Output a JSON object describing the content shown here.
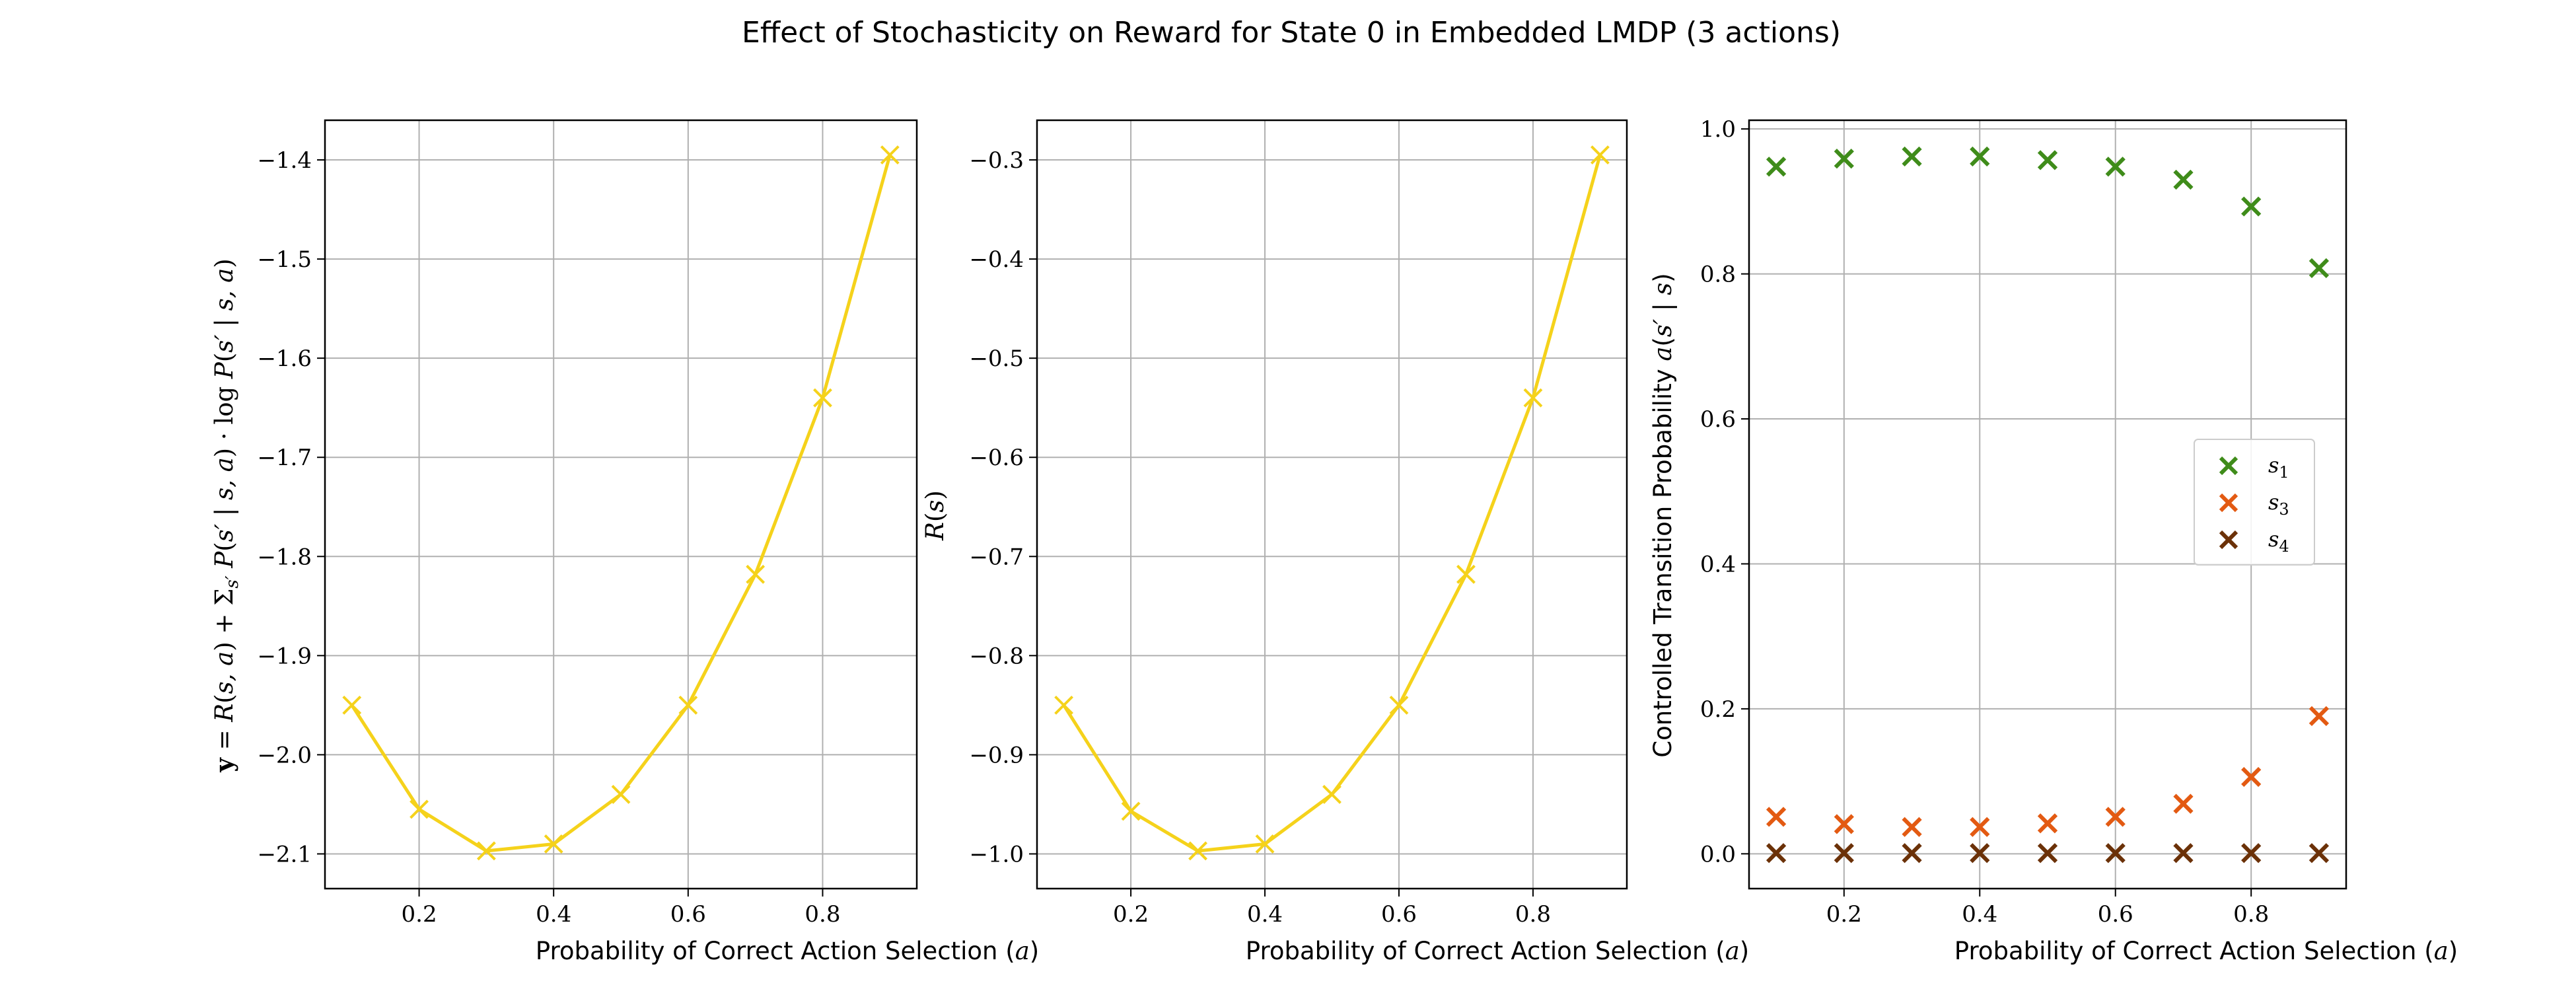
{
  "figure": {
    "suptitle": "Effect of Stochasticity on Reward for State 0 in Embedded LMDP (3 actions)"
  },
  "chart_data": [
    {
      "type": "line",
      "title": "",
      "xlabel": "Probability of Correct Action Selection (a)",
      "ylabel": "y = R(s,a) + Σs' P(s' | s,a) · log P(s' | s,a)",
      "xlim": [
        0.06,
        0.94
      ],
      "ylim": [
        -2.135,
        -1.36
      ],
      "xticks": [
        0.2,
        0.4,
        0.6,
        0.8
      ],
      "xtick_labels": [
        "0.2",
        "0.4",
        "0.6",
        "0.8"
      ],
      "yticks": [
        -2.1,
        -2.0,
        -1.9,
        -1.8,
        -1.7,
        -1.6,
        -1.5,
        -1.4
      ],
      "ytick_labels": [
        "−2.1",
        "−2.0",
        "−1.9",
        "−1.8",
        "−1.7",
        "−1.6",
        "−1.5",
        "−1.4"
      ],
      "grid": true,
      "x": [
        0.1,
        0.2,
        0.3,
        0.4,
        0.5,
        0.6,
        0.7,
        0.8,
        0.9
      ],
      "series": [
        {
          "values": [
            -1.95,
            -2.055,
            -2.097,
            -2.09,
            -2.04,
            -1.95,
            -1.818,
            -1.64,
            -1.395
          ],
          "color": "#f5d21b",
          "marker": "x"
        }
      ]
    },
    {
      "type": "line",
      "title": "",
      "xlabel": "Probability of Correct Action Selection (a)",
      "ylabel": "R(s)",
      "xlim": [
        0.06,
        0.94
      ],
      "ylim": [
        -1.035,
        -0.26
      ],
      "xticks": [
        0.2,
        0.4,
        0.6,
        0.8
      ],
      "xtick_labels": [
        "0.2",
        "0.4",
        "0.6",
        "0.8"
      ],
      "yticks": [
        -1.0,
        -0.9,
        -0.8,
        -0.7,
        -0.6,
        -0.5,
        -0.4,
        -0.3
      ],
      "ytick_labels": [
        "−1.0",
        "−0.9",
        "−0.8",
        "−0.7",
        "−0.6",
        "−0.5",
        "−0.4",
        "−0.3"
      ],
      "grid": true,
      "x": [
        0.1,
        0.2,
        0.3,
        0.4,
        0.5,
        0.6,
        0.7,
        0.8,
        0.9
      ],
      "series": [
        {
          "values": [
            -0.85,
            -0.957,
            -0.997,
            -0.99,
            -0.94,
            -0.85,
            -0.718,
            -0.54,
            -0.295
          ],
          "color": "#f5d21b",
          "marker": "x"
        }
      ]
    },
    {
      "type": "scatter",
      "title": "",
      "xlabel": "Probability of Correct Action Selection (a)",
      "ylabel": "Controlled Transition Probability a(s' | s)",
      "xlim": [
        0.06,
        0.94
      ],
      "ylim": [
        -0.048,
        1.012
      ],
      "xticks": [
        0.2,
        0.4,
        0.6,
        0.8
      ],
      "xtick_labels": [
        "0.2",
        "0.4",
        "0.6",
        "0.8"
      ],
      "yticks": [
        0.0,
        0.2,
        0.4,
        0.6,
        0.8,
        1.0
      ],
      "ytick_labels": [
        "0.0",
        "0.2",
        "0.4",
        "0.6",
        "0.8",
        "1.0"
      ],
      "grid": true,
      "legend_position": "center-right",
      "x": [
        0.1,
        0.2,
        0.3,
        0.4,
        0.5,
        0.6,
        0.7,
        0.8,
        0.9
      ],
      "series": [
        {
          "name": "s1",
          "label_main": "s",
          "label_sub": "1",
          "color": "#3f8c1a",
          "values": [
            0.948,
            0.959,
            0.962,
            0.962,
            0.957,
            0.948,
            0.93,
            0.893,
            0.808
          ]
        },
        {
          "name": "s3",
          "label_main": "s",
          "label_sub": "3",
          "color": "#e35a12",
          "values": [
            0.051,
            0.041,
            0.037,
            0.037,
            0.042,
            0.051,
            0.069,
            0.106,
            0.19
          ]
        },
        {
          "name": "s4",
          "label_main": "s",
          "label_sub": "4",
          "color": "#6b3108",
          "values": [
            0.001,
            0.001,
            0.001,
            0.001,
            0.001,
            0.001,
            0.001,
            0.001,
            0.001
          ]
        }
      ]
    }
  ]
}
